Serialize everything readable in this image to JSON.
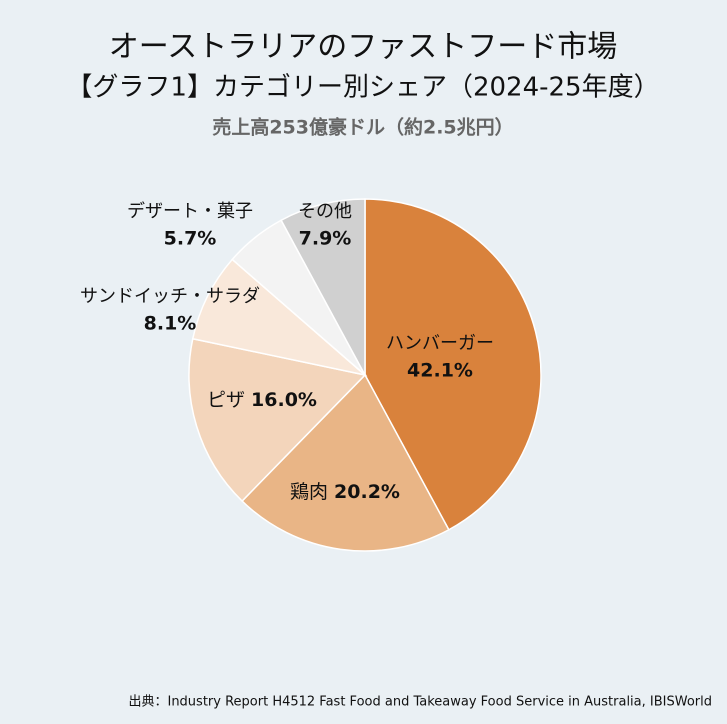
{
  "chart_data": {
    "type": "pie",
    "title": "オーストラリアのファストフード市場",
    "subtitle": "【グラフ1】カテゴリー別シェア（2024-25年度）",
    "annotation": "売上高253億豪ドル（約2.5兆円）",
    "source": "出典：Industry Report H4512 Fast Food and Takeaway Food Service in Australia, IBISWorld",
    "categories": [
      "ハンバーガー",
      "鶏肉",
      "ピザ",
      "サンドイッチ・サラダ",
      "デザート・菓子",
      "その他"
    ],
    "values": [
      42.1,
      20.2,
      16.0,
      8.1,
      5.7,
      7.9
    ],
    "value_labels": [
      "42.1%",
      "20.2%",
      "16.0%",
      "8.1%",
      "5.7%",
      "7.9%"
    ],
    "colors": [
      "#d9823c",
      "#e9b586",
      "#f3d5bb",
      "#f9e8da",
      "#f3f3f3",
      "#d0d0d0"
    ]
  }
}
